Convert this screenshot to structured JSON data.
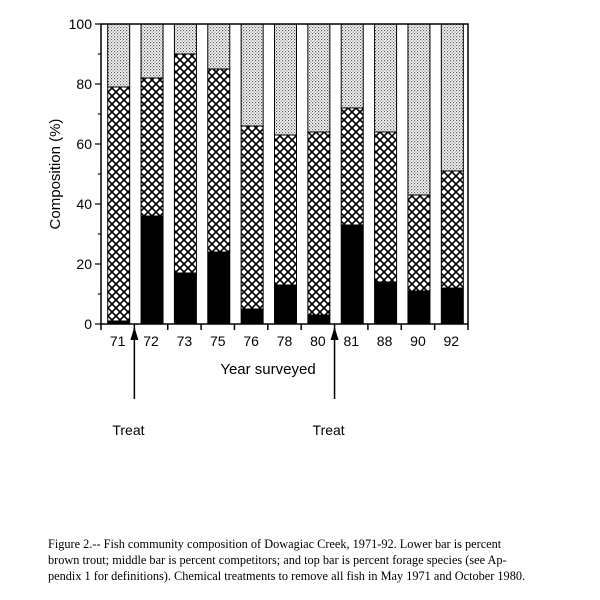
{
  "chart_data": {
    "type": "bar",
    "stacked": true,
    "title": "",
    "xlabel": "Year surveyed",
    "ylabel": "Composition  (%)",
    "ylim": [
      0,
      100
    ],
    "yticks": [
      0,
      20,
      40,
      60,
      80,
      100
    ],
    "grid": false,
    "categories": [
      "71",
      "72",
      "73",
      "75",
      "76",
      "78",
      "80",
      "81",
      "88",
      "90",
      "92"
    ],
    "series": [
      {
        "pattern": "solid-black",
        "values": [
          1,
          36,
          17,
          24,
          5,
          13,
          3,
          33,
          14,
          11,
          12
        ]
      },
      {
        "pattern": "crosshatch",
        "values": [
          78,
          46,
          73,
          61,
          61,
          50,
          61,
          39,
          50,
          32,
          39
        ]
      },
      {
        "pattern": "stipple",
        "values": [
          21,
          18,
          10,
          15,
          34,
          37,
          36,
          28,
          36,
          57,
          49
        ]
      }
    ],
    "annotations": [
      {
        "text": "Treat",
        "between": [
          "71",
          "72"
        ]
      },
      {
        "text": "Treat",
        "between": [
          "80",
          "81"
        ]
      }
    ]
  },
  "caption": {
    "line1": "Figure 2.-- Fish community composition of Dowagiac Creek, 1971-92.  Lower bar is percent",
    "line2": "brown trout; middle bar is percent competitors; and top bar is percent forage species (see Ap-",
    "line3": "pendix 1 for definitions).  Chemical treatments to remove all fish in May 1971 and October 1980."
  }
}
